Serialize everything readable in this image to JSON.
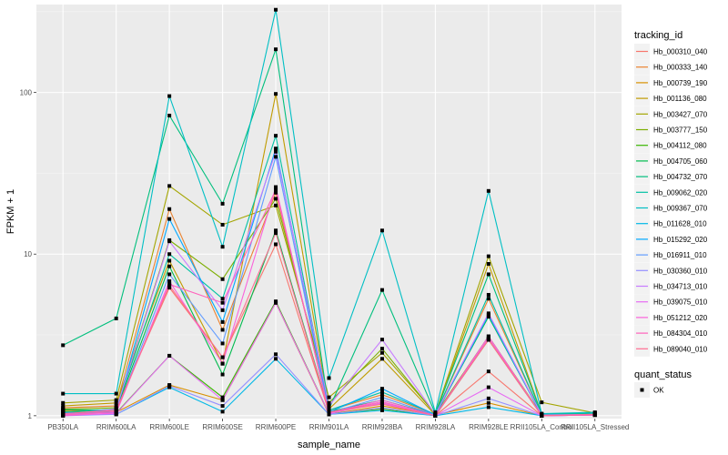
{
  "chart_data": {
    "type": "line",
    "title": "",
    "xlabel": "sample_name",
    "ylabel": "FPKM + 1",
    "y_scale": "log10",
    "ylim": [
      0.96,
      350
    ],
    "y_ticks": [
      1,
      10,
      100
    ],
    "y_tick_labels": [
      "1",
      "10",
      "100"
    ],
    "grid": true,
    "categories": [
      "PB350LA",
      "RRIM600LA",
      "RRIM600LE",
      "RRIM600SE",
      "RRIM600PE",
      "RRIM901LA",
      "RRIM928BA",
      "RRIM928LA",
      "RRIM928LE",
      "RRII105LA_Control",
      "RRII105LA_Stressed"
    ],
    "legend_color": {
      "title": "tracking_id",
      "placement": "right"
    },
    "legend_shape": {
      "title": "quant_status",
      "entries": [
        "OK"
      ],
      "placement": "right"
    },
    "series": [
      {
        "name": "Hb_000310_040",
        "color": "#F8766D",
        "values": [
          1.05,
          1.1,
          6.2,
          2.3,
          11.5,
          1.05,
          1.2,
          1.0,
          1.88,
          1.0,
          1.02
        ]
      },
      {
        "name": "Hb_000333_140",
        "color": "#EA8331",
        "values": [
          1.12,
          1.15,
          19.0,
          3.4,
          24.0,
          1.08,
          1.35,
          1.02,
          5.3,
          1.01,
          1.03
        ]
      },
      {
        "name": "Hb_000739_190",
        "color": "#D89000",
        "values": [
          1.08,
          1.05,
          1.55,
          1.25,
          5.0,
          1.02,
          1.15,
          1.01,
          1.2,
          1.0,
          1.02
        ]
      },
      {
        "name": "Hb_001136_080",
        "color": "#C09B00",
        "values": [
          1.15,
          1.2,
          9.1,
          2.1,
          98.0,
          1.1,
          2.25,
          1.01,
          8.7,
          1.02,
          1.03
        ]
      },
      {
        "name": "Hb_003427_070",
        "color": "#A3A500",
        "values": [
          1.2,
          1.25,
          26.4,
          15.2,
          20.0,
          1.3,
          2.45,
          1.03,
          9.7,
          1.21,
          1.04
        ]
      },
      {
        "name": "Hb_003777_150",
        "color": "#7CAE00",
        "values": [
          1.1,
          1.12,
          12.2,
          7.0,
          22.0,
          1.2,
          2.6,
          1.02,
          3.1,
          1.01,
          1.03
        ]
      },
      {
        "name": "Hb_004112_080",
        "color": "#39B600",
        "values": [
          1.06,
          1.04,
          2.35,
          1.3,
          5.1,
          1.03,
          1.1,
          1.0,
          2.95,
          1.0,
          1.02
        ]
      },
      {
        "name": "Hb_004705_060",
        "color": "#00BB4E",
        "values": [
          1.09,
          1.08,
          8.4,
          1.8,
          14.0,
          1.06,
          1.25,
          1.01,
          4.1,
          1.01,
          1.02
        ]
      },
      {
        "name": "Hb_004732_070",
        "color": "#00BF7D",
        "values": [
          2.73,
          4.0,
          72.0,
          20.5,
          185.0,
          1.1,
          6.0,
          1.03,
          7.5,
          1.02,
          1.04
        ]
      },
      {
        "name": "Hb_009062_020",
        "color": "#00C1A3",
        "values": [
          1.05,
          1.1,
          10.0,
          5.3,
          54.0,
          1.08,
          1.4,
          1.02,
          5.6,
          1.01,
          1.03
        ]
      },
      {
        "name": "Hb_009367_070",
        "color": "#00BFC4",
        "values": [
          1.37,
          1.37,
          95.0,
          11.1,
          325.0,
          1.71,
          14.0,
          1.05,
          24.6,
          1.03,
          1.05
        ]
      },
      {
        "name": "Hb_011628_010",
        "color": "#00B8E7",
        "values": [
          1.02,
          1.02,
          1.5,
          1.06,
          2.25,
          1.02,
          1.08,
          1.0,
          1.13,
          1.0,
          1.01
        ]
      },
      {
        "name": "Hb_015292_020",
        "color": "#00A9FF",
        "values": [
          1.04,
          1.06,
          16.5,
          3.8,
          45.0,
          1.05,
          1.47,
          1.01,
          4.2,
          1.0,
          1.02
        ]
      },
      {
        "name": "Hb_016911_010",
        "color": "#619CFF",
        "values": [
          1.03,
          1.05,
          7.5,
          2.8,
          40.0,
          1.04,
          1.3,
          1.01,
          3.0,
          1.0,
          1.02
        ]
      },
      {
        "name": "Hb_030360_010",
        "color": "#9590FF",
        "values": [
          1.0,
          1.02,
          1.53,
          1.15,
          2.4,
          1.02,
          1.12,
          1.0,
          1.28,
          1.0,
          1.01
        ]
      },
      {
        "name": "Hb_034713_010",
        "color": "#C77CFF",
        "values": [
          1.02,
          1.1,
          12.0,
          4.5,
          43.0,
          1.15,
          2.96,
          1.02,
          4.3,
          1.01,
          1.02
        ]
      },
      {
        "name": "Hb_039075_010",
        "color": "#E76BF3",
        "values": [
          1.01,
          1.03,
          2.35,
          1.25,
          5.0,
          1.03,
          1.2,
          1.0,
          1.5,
          1.0,
          1.01
        ]
      },
      {
        "name": "Hb_051212_020",
        "color": "#FA62DB",
        "values": [
          1.0,
          1.04,
          6.8,
          2.1,
          26.0,
          1.04,
          1.25,
          1.0,
          3.1,
          1.0,
          1.01
        ]
      },
      {
        "name": "Hb_084304_010",
        "color": "#FF62BC",
        "values": [
          1.01,
          1.06,
          6.5,
          5.0,
          25.0,
          1.05,
          1.22,
          1.0,
          3.0,
          1.0,
          1.01
        ]
      },
      {
        "name": "Hb_089040_010",
        "color": "#FF6C91",
        "values": [
          1.03,
          1.08,
          6.4,
          2.3,
          13.5,
          1.05,
          1.18,
          1.0,
          2.95,
          1.0,
          1.02
        ]
      }
    ]
  }
}
